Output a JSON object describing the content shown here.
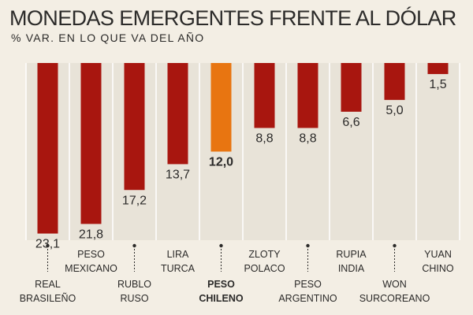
{
  "chart_data": {
    "type": "bar",
    "title": "MONEDAS EMERGENTES FRENTE AL DÓLAR",
    "subtitle": "% VAR. EN LO QUE VA DEL AÑO",
    "xlabel": "",
    "ylabel": "",
    "ylim": [
      0,
      24.0
    ],
    "grid": "vertical",
    "legend": "none",
    "categories": [
      [
        "REAL",
        "BRASILEÑO"
      ],
      [
        "PESO",
        "MEXICANO"
      ],
      [
        "RUBLO",
        "RUSO"
      ],
      [
        "LIRA",
        "TURCA"
      ],
      [
        "PESO",
        "CHILENO"
      ],
      [
        "ZLOTY",
        "POLACO"
      ],
      [
        "PESO",
        "ARGENTINO"
      ],
      [
        "RUPIA",
        "INDIA"
      ],
      [
        "WON",
        "SURCOREANO"
      ],
      [
        "YUAN",
        "CHINO"
      ]
    ],
    "values": [
      23.1,
      21.8,
      17.2,
      13.7,
      12.0,
      8.8,
      8.8,
      6.6,
      5.0,
      1.5
    ],
    "value_labels": [
      "23,1",
      "21,8",
      "17,2",
      "13,7",
      "12,0",
      "8,8",
      "8,8",
      "6,6",
      "5,0",
      "1,5"
    ],
    "highlight_index": 4,
    "colors": {
      "bar": "#a8160f",
      "highlight": "#e87511",
      "grid": "#ffffff",
      "text": "#2b2a29",
      "background": "#f3eee4",
      "chart_bg": "#e8e3d8"
    }
  }
}
